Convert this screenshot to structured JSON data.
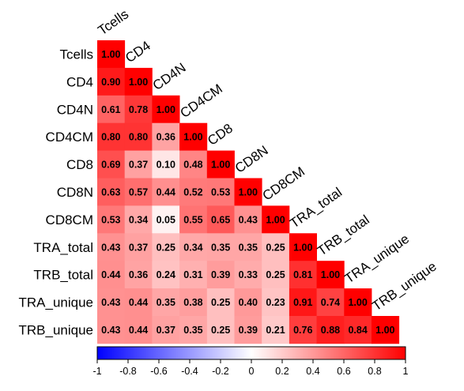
{
  "chart_data": {
    "type": "heatmap",
    "variables": [
      "Tcells",
      "CD4",
      "CD4N",
      "CD4CM",
      "CD8",
      "CD8N",
      "CD8CM",
      "TRA_total",
      "TRB_total",
      "TRA_unique",
      "TRB_unique"
    ],
    "matrix": [
      [
        1.0
      ],
      [
        0.9,
        1.0
      ],
      [
        0.61,
        0.78,
        1.0
      ],
      [
        0.8,
        0.8,
        0.36,
        1.0
      ],
      [
        0.69,
        0.37,
        0.1,
        0.48,
        1.0
      ],
      [
        0.63,
        0.57,
        0.44,
        0.52,
        0.53,
        1.0
      ],
      [
        0.53,
        0.34,
        0.05,
        0.55,
        0.65,
        0.43,
        1.0
      ],
      [
        0.43,
        0.37,
        0.25,
        0.34,
        0.35,
        0.35,
        0.25,
        1.0
      ],
      [
        0.44,
        0.36,
        0.24,
        0.31,
        0.39,
        0.33,
        0.25,
        0.81,
        1.0
      ],
      [
        0.43,
        0.44,
        0.35,
        0.38,
        0.25,
        0.4,
        0.23,
        0.91,
        0.74,
        1.0
      ],
      [
        0.43,
        0.44,
        0.37,
        0.35,
        0.25,
        0.39,
        0.21,
        0.76,
        0.88,
        0.84,
        1.0
      ]
    ],
    "colorbar": {
      "range": [
        -1,
        1
      ],
      "ticks": [
        "-1",
        "-0.8",
        "-0.6",
        "-0.4",
        "-0.2",
        "0",
        "0.2",
        "0.4",
        "0.6",
        "0.8",
        "1"
      ],
      "low_color": "#0000ff",
      "mid_color": "#ffffff",
      "high_color": "#ff0000"
    },
    "legend": "bottom"
  }
}
